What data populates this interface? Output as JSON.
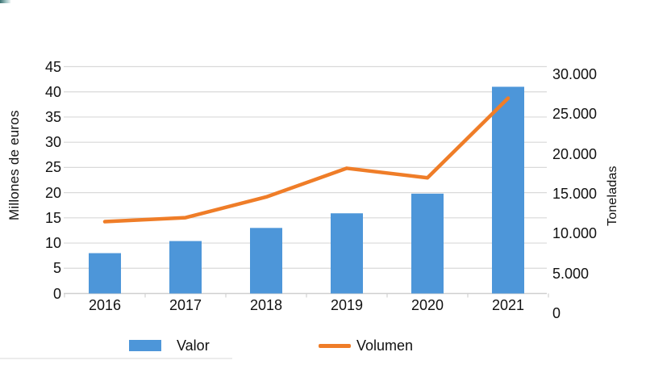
{
  "chart_data": {
    "type": "combo_bar_line",
    "categories": [
      "2016",
      "2017",
      "2018",
      "2019",
      "2020",
      "2021"
    ],
    "series": [
      {
        "name": "Valor",
        "chart_type": "bar",
        "axis": "left",
        "color": "#4D96D9",
        "values": [
          8,
          10.4,
          13,
          15.9,
          19.8,
          41
        ]
      },
      {
        "name": "Volumen",
        "chart_type": "line",
        "axis": "right",
        "color": "#EF7D28",
        "values": [
          11500,
          12000,
          14600,
          18200,
          17000,
          27000
        ]
      }
    ],
    "left_axis": {
      "title": "Millones de euros",
      "min": 0,
      "max": 45,
      "step": 5,
      "tick_labels": [
        "0",
        "5",
        "10",
        "15",
        "20",
        "25",
        "30",
        "35",
        "40",
        "45"
      ]
    },
    "right_axis": {
      "title": "Toneladas",
      "min": 0,
      "max": 30000,
      "step": 5000,
      "tick_labels": [
        "0",
        "5.000",
        "10.000",
        "15.000",
        "20.000",
        "25.000",
        "30.000"
      ]
    },
    "grid": true,
    "legend_position": "bottom"
  },
  "legend": {
    "items": [
      {
        "label": "Valor",
        "marker": "square",
        "color": "#4D96D9"
      },
      {
        "label": "Volumen",
        "marker": "line",
        "color": "#EF7D28"
      }
    ]
  },
  "colors": {
    "bar": "#4D96D9",
    "line": "#EF7D28",
    "gridline": "#d9d9d9",
    "axis_line": "#cfcfcf",
    "tick_mark": "#d2d2d2",
    "text": "#111111",
    "corner_strip_start": "#3a7070",
    "corner_strip_mid": "#9fc3c3",
    "corner_strip_end": "#eaf2f2",
    "divider": "#ececec"
  }
}
